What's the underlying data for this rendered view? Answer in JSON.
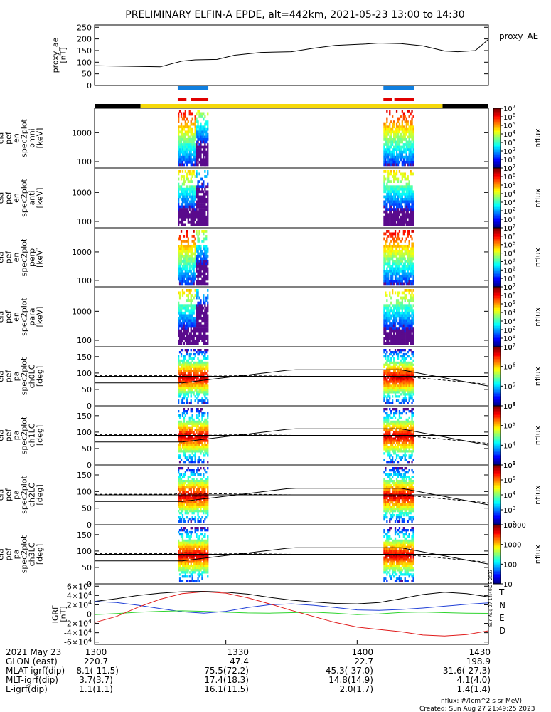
{
  "title": "PRELIMINARY ELFIN-A EPDE, alt=442km, 2021-05-23 13:00 to 14:30",
  "colors": {
    "axis": "#000000",
    "sci_bar": "#0f7fe0",
    "sci_bar_red": "#e00000",
    "day_bar": "#f5d80a",
    "night_bar": "#000000",
    "T": "#000000",
    "N": "#1f3fd6",
    "E": "#2ed42e",
    "D": "#e01a1a"
  },
  "chart_data": [
    {
      "type": "line",
      "name": "proxy_ae",
      "ylabel_lines": [
        "proxy_ae",
        "[nT]"
      ],
      "legend": "proxy_AE",
      "ylim": [
        0,
        260
      ],
      "yticks": [
        0,
        50,
        100,
        150,
        200,
        250
      ],
      "ytick_labels": [
        "0",
        "50",
        "100",
        "150",
        "200",
        "250"
      ],
      "x_minutes": [
        0,
        10,
        15,
        20,
        23,
        28,
        32,
        38,
        45,
        50,
        55,
        62,
        65,
        70,
        75,
        80,
        83,
        87,
        90
      ],
      "values": [
        85,
        82,
        80,
        105,
        110,
        112,
        130,
        142,
        145,
        160,
        172,
        178,
        182,
        180,
        170,
        148,
        145,
        150,
        198
      ]
    },
    {
      "type": "heatmap",
      "name": "spec2plot_omni",
      "ylabel_lines": [
        "ela",
        "pef",
        "en",
        "spec2plot",
        "omni",
        "[keV]"
      ],
      "ylog": true,
      "ylim": [
        60,
        7000
      ],
      "yticks": [
        100,
        1000
      ],
      "ytick_labels": [
        "100",
        "1000"
      ],
      "cbar_label": "nflux",
      "cbar_range": [
        1,
        7
      ],
      "cbar_ticks": [
        "10",
        "10^1",
        "10^2",
        "10^3",
        "10^4",
        "10^5",
        "10^6",
        "10^7"
      ]
    },
    {
      "type": "heatmap",
      "name": "spec2plot_anti",
      "ylabel_lines": [
        "ela",
        "pef",
        "en",
        "spec2plot",
        "anti",
        "[keV]"
      ],
      "ylog": true,
      "ylim": [
        60,
        7000
      ],
      "yticks": [
        100,
        1000
      ],
      "ytick_labels": [
        "100",
        "1000"
      ],
      "cbar_label": "nflux",
      "cbar_range": [
        1,
        7
      ],
      "cbar_ticks": [
        "10",
        "10^1",
        "10^2",
        "10^3",
        "10^4",
        "10^5",
        "10^6",
        "10^7"
      ]
    },
    {
      "type": "heatmap",
      "name": "spec2plot_perp",
      "ylabel_lines": [
        "ela",
        "pef",
        "en",
        "spec2plot",
        "perp",
        "[keV]"
      ],
      "ylog": true,
      "ylim": [
        60,
        7000
      ],
      "yticks": [
        100,
        1000
      ],
      "ytick_labels": [
        "100",
        "1000"
      ],
      "cbar_label": "nflux",
      "cbar_range": [
        1,
        7
      ],
      "cbar_ticks": [
        "10",
        "10^1",
        "10^2",
        "10^3",
        "10^4",
        "10^5",
        "10^6",
        "10^7"
      ]
    },
    {
      "type": "heatmap",
      "name": "spec2plot_para",
      "ylabel_lines": [
        "ela",
        "pef",
        "en",
        "spec2plot",
        "para",
        "[keV]"
      ],
      "ylog": true,
      "ylim": [
        60,
        7000
      ],
      "yticks": [
        100,
        1000
      ],
      "ytick_labels": [
        "100",
        "1000"
      ],
      "cbar_label": "nflux",
      "cbar_range": [
        1,
        7
      ],
      "cbar_ticks": [
        "10",
        "10^1",
        "10^2",
        "10^3",
        "10^4",
        "10^5",
        "10^6",
        "10^7"
      ]
    },
    {
      "type": "heatmap",
      "name": "spec2plot_ch0LC",
      "ylabel_lines": [
        "ela",
        "pef",
        "pa",
        "spec2plot",
        "ch0LC",
        "[deg]"
      ],
      "ylog": false,
      "ylim": [
        0,
        180
      ],
      "yticks": [
        0,
        50,
        100,
        150
      ],
      "ytick_labels": [
        "0",
        "50",
        "100",
        "150"
      ],
      "cbar_label": "nflux",
      "cbar_range": [
        3.3,
        7
      ],
      "cbar_ticks": [
        "10^4",
        "10^5",
        "10^6",
        "10^7"
      ]
    },
    {
      "type": "heatmap",
      "name": "spec2plot_ch1LC",
      "ylabel_lines": [
        "ela",
        "pef",
        "pa",
        "spec2plot",
        "ch1LC",
        "[deg]"
      ],
      "ylog": false,
      "ylim": [
        0,
        180
      ],
      "yticks": [
        0,
        50,
        100,
        150
      ],
      "ytick_labels": [
        "0",
        "50",
        "100",
        "150"
      ],
      "cbar_label": "nflux",
      "cbar_range": [
        3,
        6.6
      ],
      "cbar_ticks": [
        "10^3",
        "10^4",
        "10^5",
        "10^6"
      ]
    },
    {
      "type": "heatmap",
      "name": "spec2plot_ch2LC",
      "ylabel_lines": [
        "ela",
        "pef",
        "pa",
        "spec2plot",
        "ch2LC",
        "[deg]"
      ],
      "ylog": false,
      "ylim": [
        0,
        180
      ],
      "yticks": [
        0,
        50,
        100,
        150
      ],
      "ytick_labels": [
        "0",
        "50",
        "100",
        "150"
      ],
      "cbar_label": "nflux",
      "cbar_range": [
        2,
        6.4
      ],
      "cbar_ticks": [
        "10^2",
        "10^3",
        "10^4",
        "10^5",
        "10^6"
      ]
    },
    {
      "type": "heatmap",
      "name": "spec2plot_ch3LC",
      "ylabel_lines": [
        "ela",
        "pef",
        "pa",
        "spec2plot",
        "ch3LC",
        "[deg]"
      ],
      "ylog": false,
      "ylim": [
        0,
        180
      ],
      "yticks": [
        0,
        50,
        100,
        150
      ],
      "ytick_labels": [
        "0",
        "50",
        "100",
        "150"
      ],
      "cbar_label": "nflux",
      "cbar_range": [
        1,
        4.3
      ],
      "cbar_ticks": [
        "10",
        "100",
        "1000",
        "10000"
      ]
    },
    {
      "type": "line",
      "name": "IGRF",
      "ylabel_lines": [
        "IGRF",
        "[nT]"
      ],
      "ylim": [
        -65000,
        65000
      ],
      "yticks": [
        -60000,
        -40000,
        -20000,
        0,
        20000,
        40000,
        60000
      ],
      "ytick_labels": [
        "-6×10^4",
        "-4×10^4",
        "-2×10^4",
        "0",
        "2×10^4",
        "4×10^4",
        "6×10^4"
      ],
      "legend": [
        "T",
        "N",
        "E",
        "D"
      ],
      "x_minutes": [
        0,
        5,
        10,
        15,
        20,
        25,
        30,
        35,
        40,
        45,
        50,
        55,
        60,
        65,
        70,
        75,
        80,
        85,
        90
      ],
      "series": [
        {
          "name": "T",
          "values": [
            27000,
            33000,
            40000,
            45000,
            48000,
            49000,
            47000,
            43000,
            36000,
            30000,
            26000,
            23000,
            22000,
            25000,
            33000,
            42000,
            47000,
            44000,
            37000
          ]
        },
        {
          "name": "N",
          "values": [
            27000,
            25000,
            19000,
            12000,
            5000,
            2000,
            6000,
            14000,
            20000,
            22000,
            19000,
            14000,
            9000,
            8000,
            10000,
            13000,
            17000,
            21000,
            24000
          ]
        },
        {
          "name": "E",
          "values": [
            -1000,
            1000,
            4000,
            6000,
            7000,
            6000,
            4000,
            2500,
            2000,
            3000,
            4000,
            2000,
            -1000,
            500,
            3500,
            4500,
            3000,
            2000,
            1500
          ]
        },
        {
          "name": "D",
          "values": [
            -18000,
            -5000,
            15000,
            32000,
            44000,
            48000,
            45000,
            35000,
            22000,
            8000,
            -5000,
            -18000,
            -28000,
            -33000,
            -38000,
            -45000,
            -47000,
            -44000,
            -36000
          ]
        }
      ]
    }
  ],
  "bars": {
    "sci_blue": [
      [
        19,
        26
      ],
      [
        66,
        73
      ]
    ],
    "sci_red": [
      [
        19,
        21
      ],
      [
        22,
        26
      ],
      [
        66,
        68
      ],
      [
        68.5,
        73
      ]
    ],
    "night": [
      [
        0,
        10.5
      ],
      [
        79.5,
        90
      ]
    ],
    "day": [
      [
        10.5,
        79.5
      ]
    ]
  },
  "x_axis": {
    "tick_labels": [
      "1300",
      "1330",
      "1400",
      "1430"
    ],
    "tick_minutes": [
      0,
      30,
      60,
      90
    ]
  },
  "footer": {
    "row_labels": [
      "2021 May 23",
      "GLON (east)",
      "MLAT-igrf(dip)",
      "MLT-igrf(dip)",
      "L-igrf(dip)"
    ],
    "columns": [
      [
        "1300",
        "220.7",
        "-8.1(-11.5)",
        "3.7(3.7)",
        "1.1(1.1)"
      ],
      [
        "1330",
        "47.4",
        "75.5(72.2)",
        "17.4(18.3)",
        "16.1(11.5)"
      ],
      [
        "1400",
        "22.7",
        "-45.3(-37.0)",
        "14.8(14.9)",
        "2.0(1.7)"
      ],
      [
        "1430",
        "198.9",
        "-31.6(-27.3)",
        "4.1(4.0)",
        "1.4(1.4)"
      ]
    ],
    "nflux_units": "nflux: #/(cm^2 s sr MeV)",
    "created": "Created: Sun Aug 27 21:49:25 2023",
    "side_stamp": "Sun Aug 27 14:49:25 2023"
  }
}
